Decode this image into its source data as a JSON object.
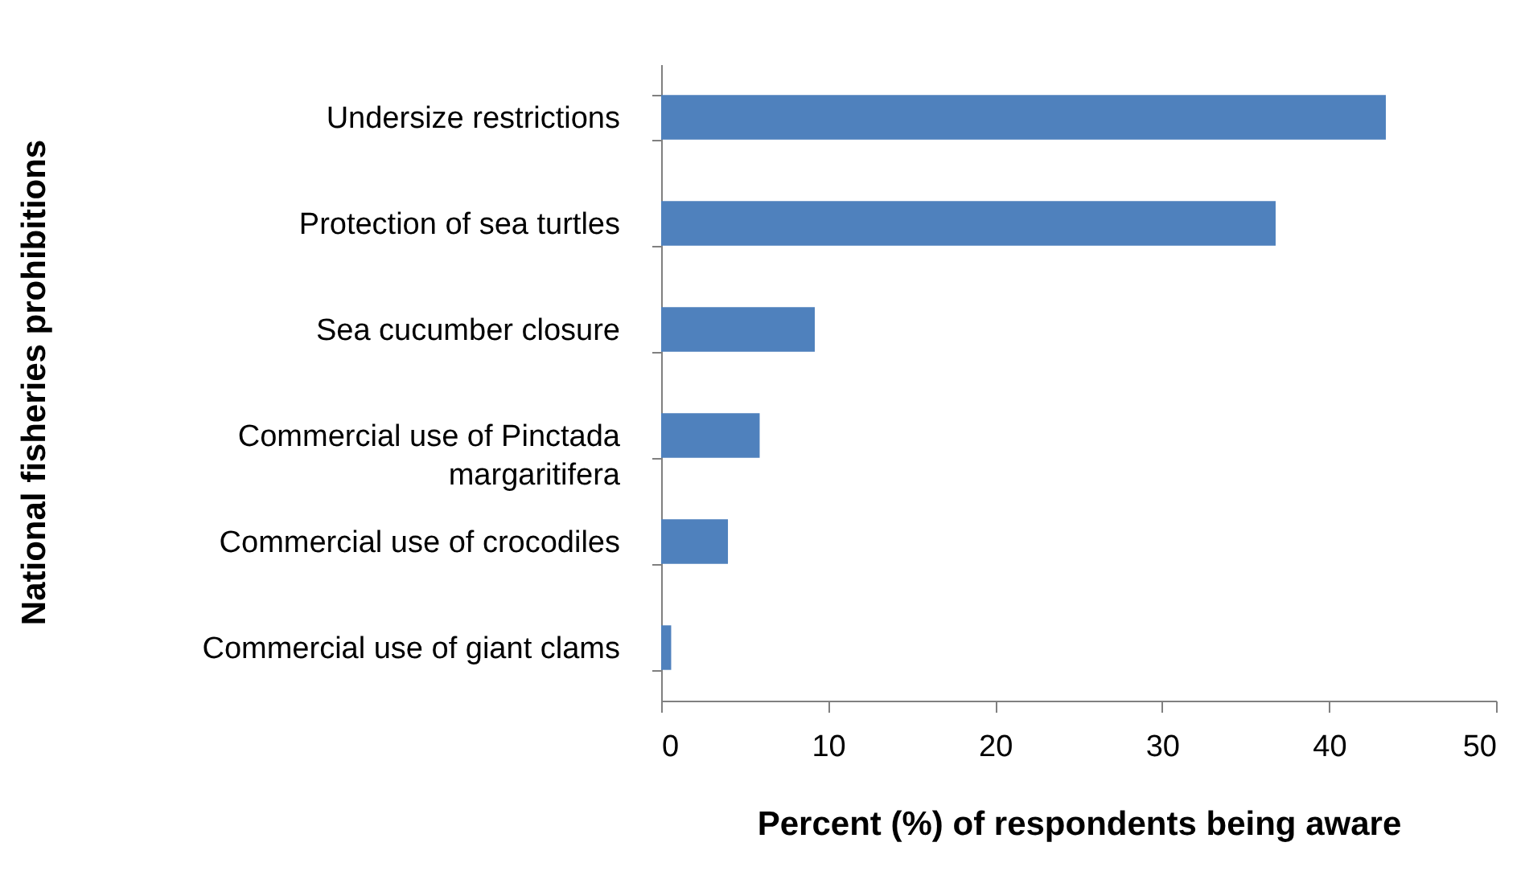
{
  "chart_data": {
    "type": "bar",
    "orientation": "horizontal",
    "xlabel": "Percent (%) of respondents being aware",
    "ylabel": "National fisheries prohibitions",
    "categories": [
      "Undersize restrictions",
      "Protection of sea turtles",
      "Sea cucumber closure",
      "Commercial use of Pinctada margaritifera",
      "Commercial use of crocodiles",
      "Commercial use of giant clams"
    ],
    "values": [
      43.4,
      36.8,
      9.2,
      5.9,
      4.0,
      0.6
    ],
    "color": "#4f81bd",
    "xlim": [
      0,
      50
    ],
    "xticks": [
      0,
      10,
      20,
      30,
      40,
      50
    ],
    "grid": false
  }
}
